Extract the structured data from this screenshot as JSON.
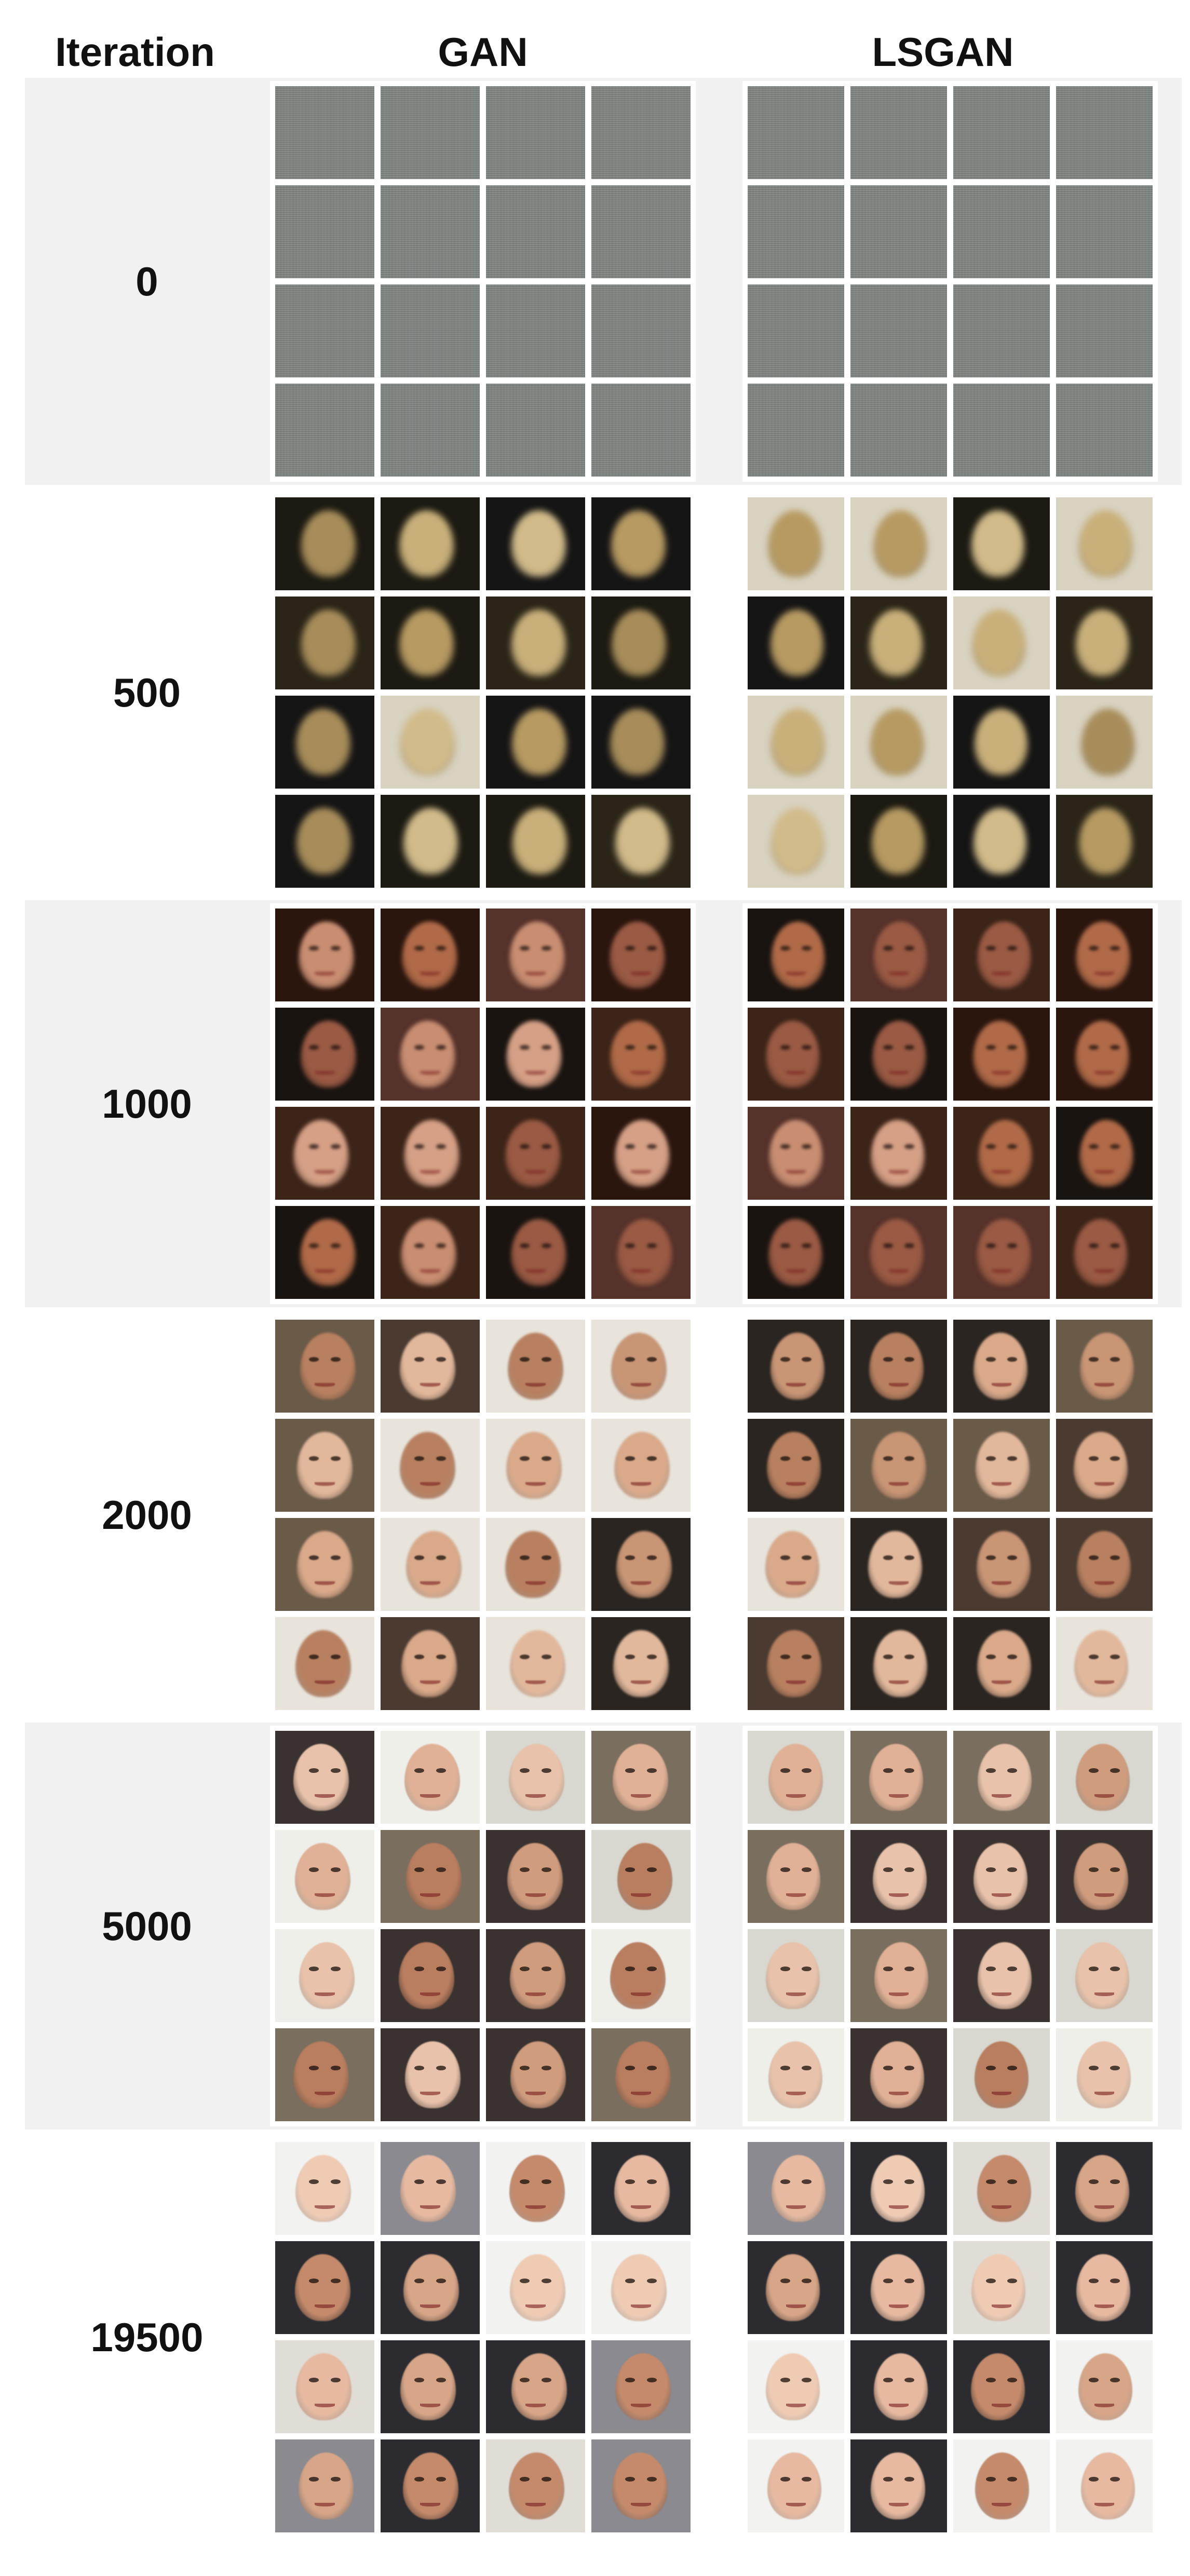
{
  "header": {
    "iteration_label": "Iteration",
    "gan_label": "GAN",
    "lsgan_label": "LSGAN"
  },
  "rows": [
    {
      "iteration": "0"
    },
    {
      "iteration": "500"
    },
    {
      "iteration": "1000"
    },
    {
      "iteration": "2000"
    },
    {
      "iteration": "5000"
    },
    {
      "iteration": "19500"
    }
  ]
}
